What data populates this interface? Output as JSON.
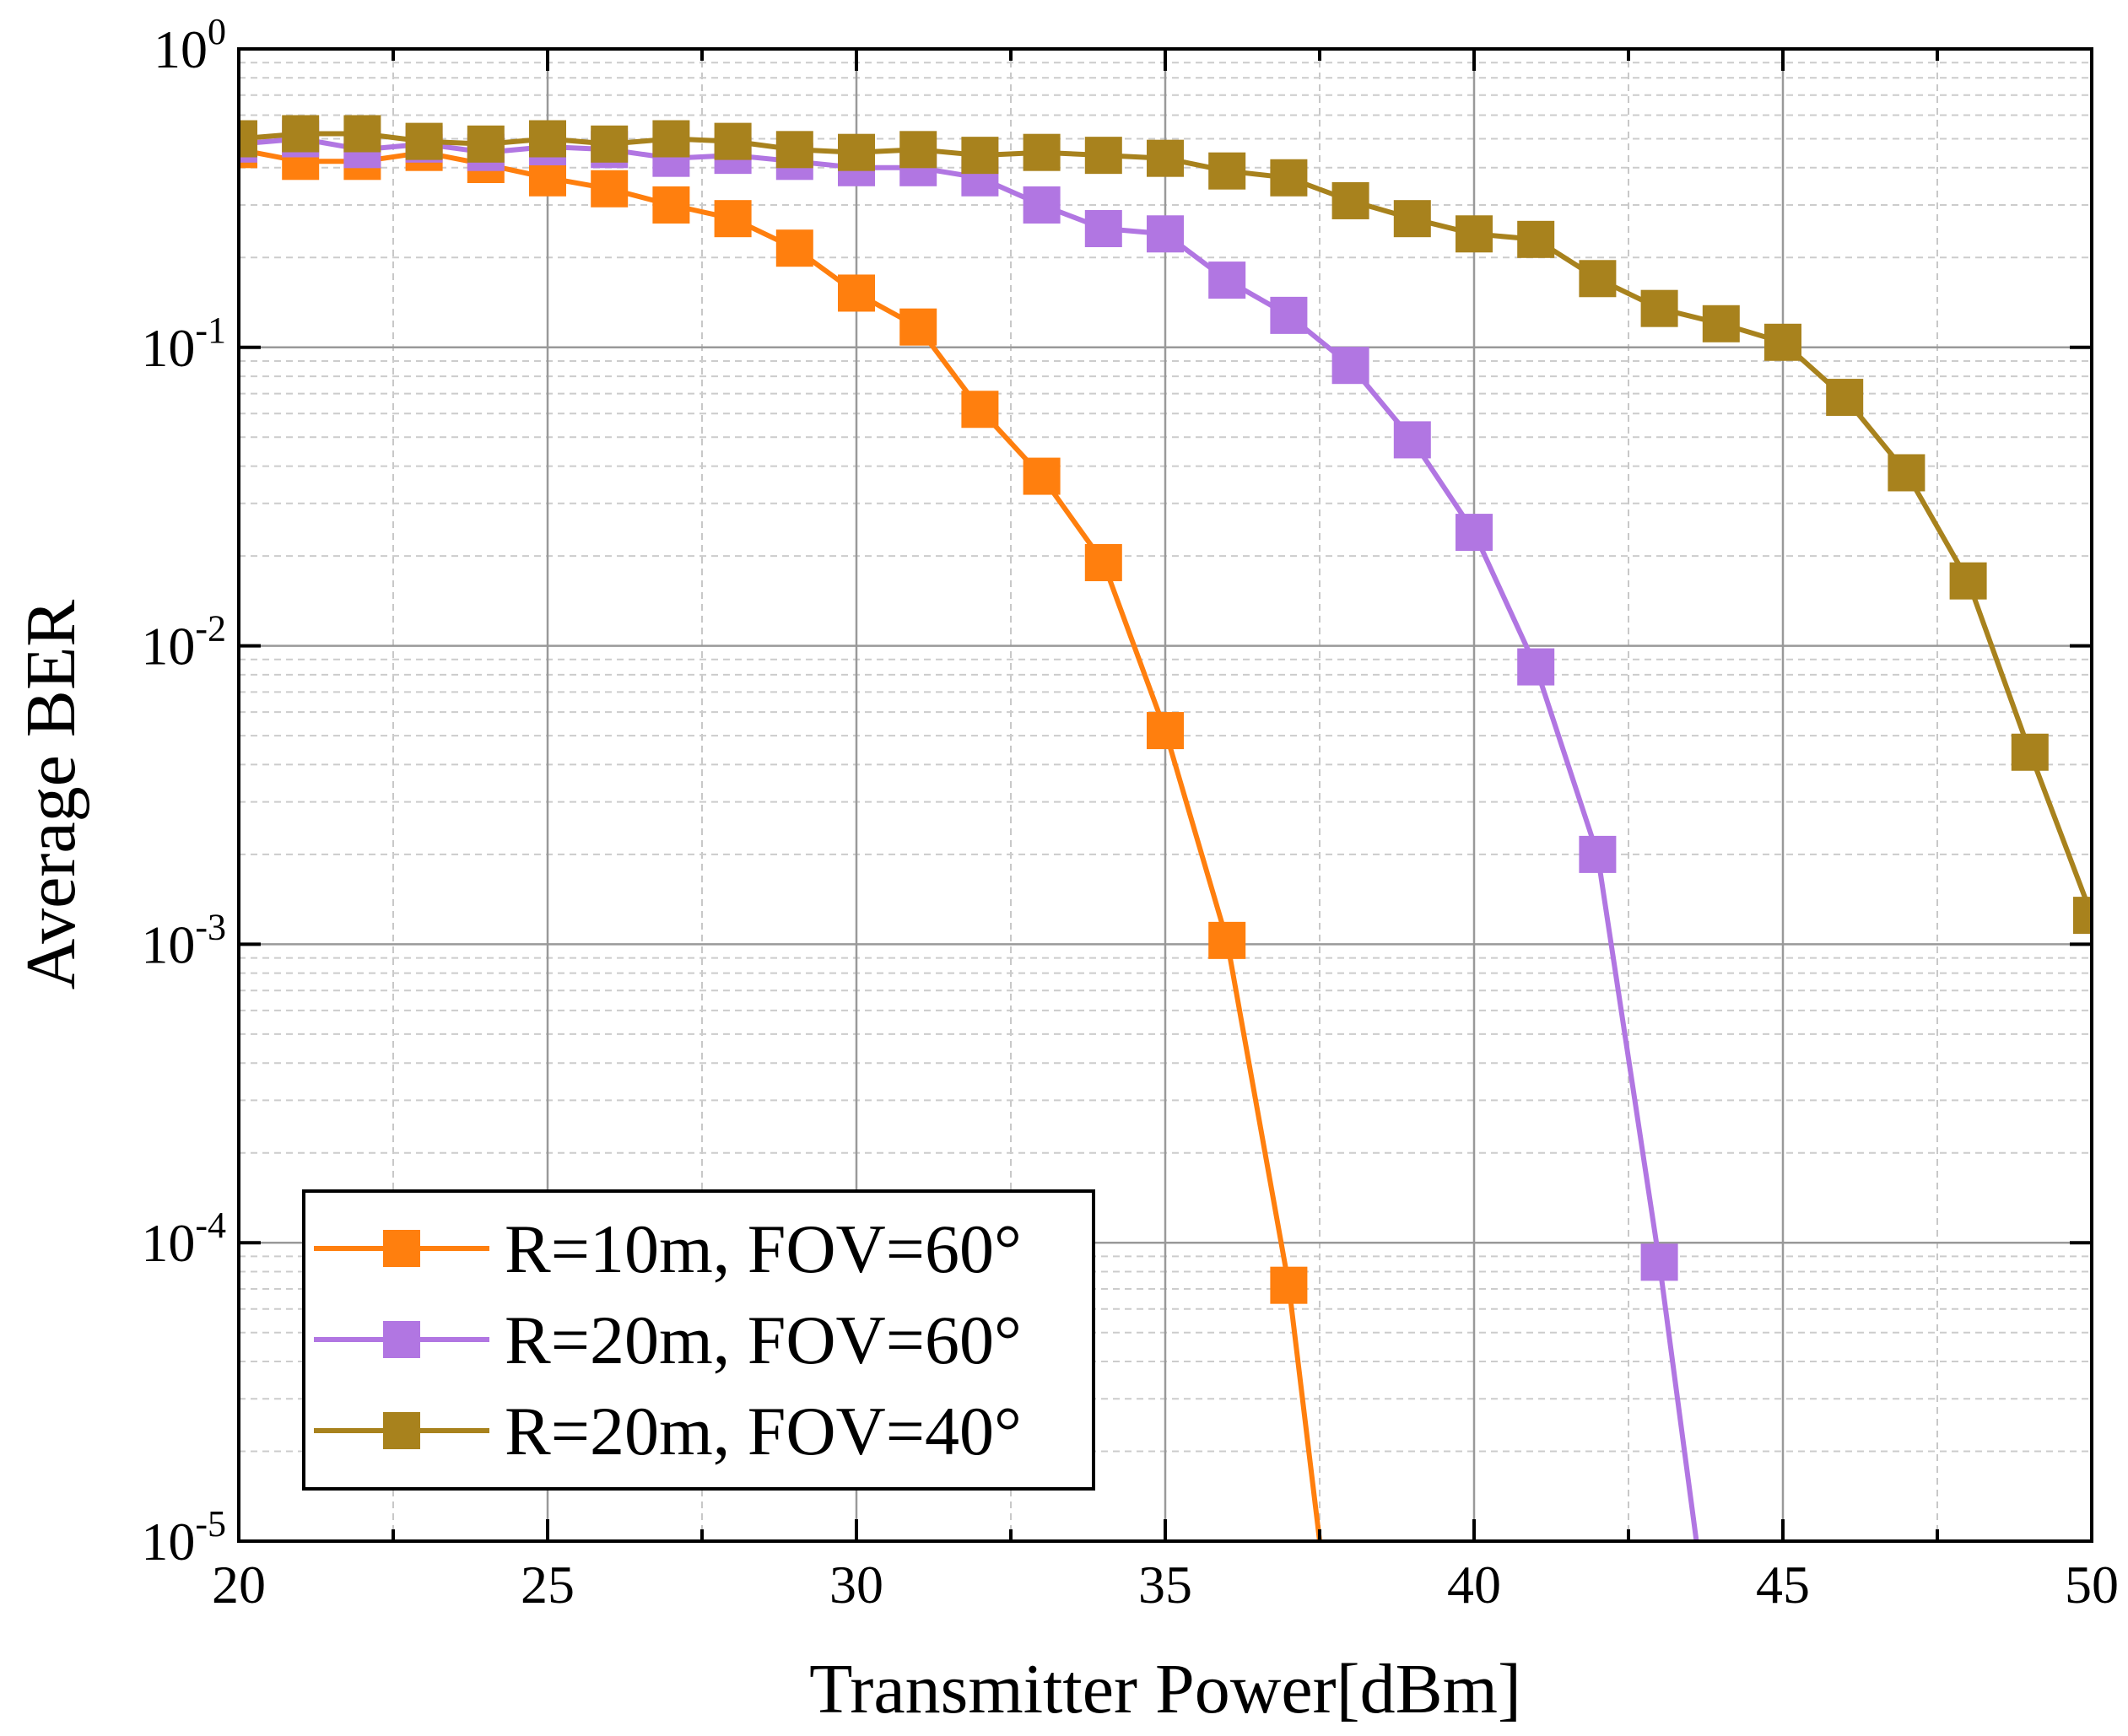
{
  "chart_data": {
    "type": "line",
    "xlabel": "Transmitter Power[dBm]",
    "ylabel": "Average BER",
    "xlim": [
      20,
      50
    ],
    "ylim": [
      1e-05,
      1
    ],
    "yscale": "log",
    "grid": true,
    "legend_position": "bottom-left",
    "x_ticks": [
      "20",
      "25",
      "30",
      "35",
      "40",
      "45",
      "50"
    ],
    "y_ticks": [
      {
        "base": "10",
        "exp": "0"
      },
      {
        "base": "10",
        "exp": "-1"
      },
      {
        "base": "10",
        "exp": "-2"
      },
      {
        "base": "10",
        "exp": "-3"
      },
      {
        "base": "10",
        "exp": "-4"
      },
      {
        "base": "10",
        "exp": "-5"
      }
    ],
    "series": [
      {
        "name": "R=10m, FOV=60°",
        "color": "#FF7F0E",
        "x": [
          20,
          21,
          22,
          23,
          24,
          25,
          26,
          27,
          28,
          29,
          30,
          31,
          32,
          33,
          34,
          35,
          36,
          37,
          37.5
        ],
        "y": [
          0.46,
          0.42,
          0.42,
          0.45,
          0.41,
          0.37,
          0.34,
          0.3,
          0.27,
          0.215,
          0.152,
          0.117,
          0.062,
          0.037,
          0.019,
          0.0052,
          0.00103,
          7.2e-05,
          1e-05
        ],
        "markers": 18
      },
      {
        "name": "R=20m, FOV=60°",
        "color": "#B176E2",
        "x": [
          20,
          21,
          22,
          23,
          24,
          25,
          26,
          27,
          28,
          29,
          30,
          31,
          32,
          33,
          34,
          35,
          36,
          37,
          38,
          39,
          40,
          41,
          42,
          43,
          43.6
        ],
        "y": [
          0.48,
          0.5,
          0.46,
          0.48,
          0.45,
          0.47,
          0.46,
          0.43,
          0.44,
          0.42,
          0.4,
          0.4,
          0.37,
          0.3,
          0.25,
          0.24,
          0.168,
          0.128,
          0.087,
          0.049,
          0.024,
          0.0085,
          0.002,
          8.6e-05,
          1e-05
        ],
        "markers": 24
      },
      {
        "name": "R=20m, FOV=40°",
        "color": "#A8821D",
        "x": [
          20,
          21,
          22,
          23,
          24,
          25,
          26,
          27,
          28,
          29,
          30,
          31,
          32,
          33,
          34,
          35,
          36,
          37,
          38,
          39,
          40,
          41,
          42,
          43,
          44,
          45,
          46,
          47,
          48,
          49,
          50
        ],
        "y": [
          0.5,
          0.52,
          0.52,
          0.49,
          0.48,
          0.5,
          0.48,
          0.5,
          0.49,
          0.46,
          0.45,
          0.46,
          0.44,
          0.45,
          0.44,
          0.43,
          0.39,
          0.37,
          0.31,
          0.27,
          0.24,
          0.23,
          0.17,
          0.135,
          0.12,
          0.104,
          0.068,
          0.038,
          0.0165,
          0.0044,
          0.00125
        ],
        "markers": 31
      }
    ]
  }
}
